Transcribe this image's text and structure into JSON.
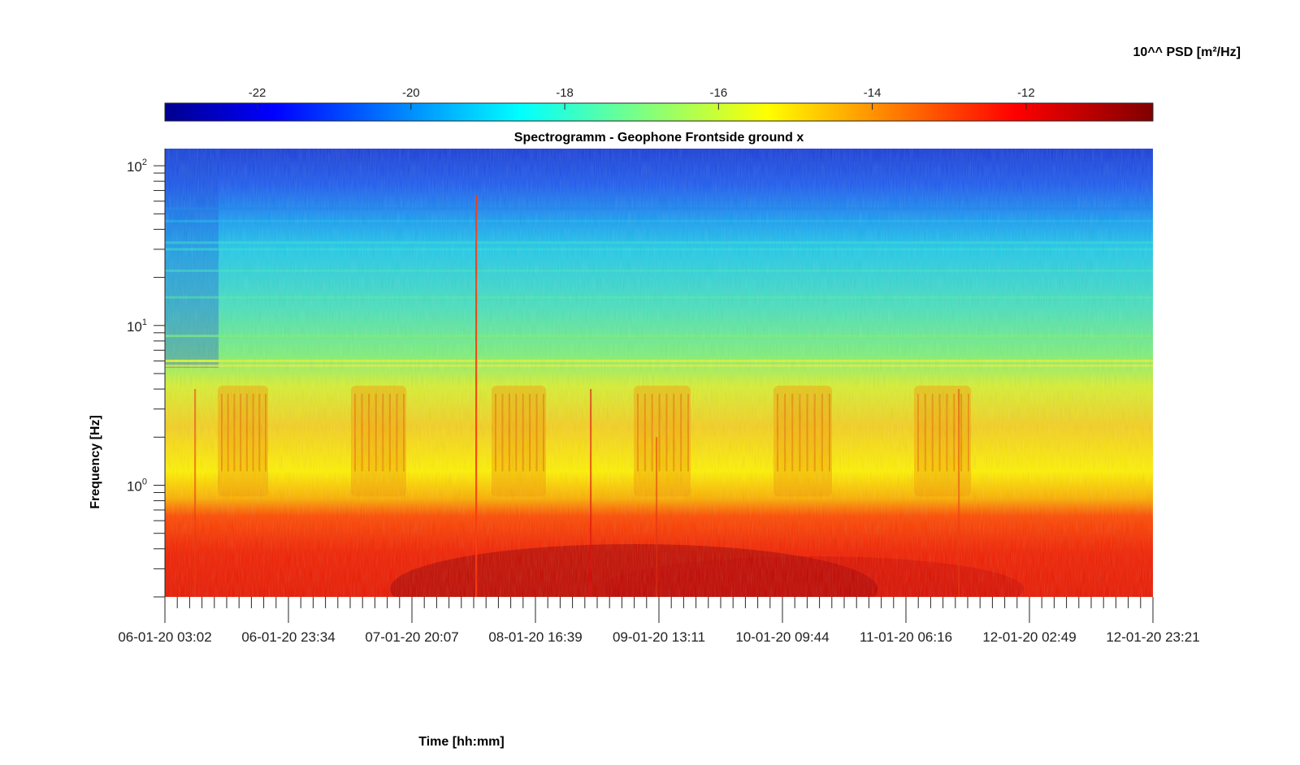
{
  "colorbar": {
    "label": "10^^ PSD [m²/Hz]",
    "ticks": [
      -22,
      -20,
      -18,
      -16,
      -14,
      -12
    ],
    "range": [
      -23.2,
      -10.35
    ]
  },
  "chart_data": {
    "type": "heatmap",
    "title": "Spectrogramm - Geophone Frontside ground x",
    "xlabel": "Time [hh:mm]",
    "ylabel": "Frequency [Hz]",
    "y_scale": "log",
    "y_tick_labels": [
      "10",
      "10",
      "10"
    ],
    "y_tick_exponents": [
      "2",
      "1",
      "0"
    ],
    "y_tick_values": [
      100,
      10,
      1
    ],
    "ylim": [
      0.2,
      128
    ],
    "x_tick_labels": [
      "06-01-20 03:02",
      "06-01-20 23:34",
      "07-01-20 20:07",
      "08-01-20 16:39",
      "09-01-20 13:11",
      "10-01-20 09:44",
      "11-01-20 06:16",
      "12-01-20 02:49",
      "12-01-20 23:21"
    ],
    "xlim": [
      "06-01-20 03:02",
      "12-01-20 23:21"
    ],
    "colormap": "jet",
    "value_units": "log10 PSD [m²/Hz]",
    "bands": [
      {
        "freq_range_hz": [
          50,
          128
        ],
        "value": -21.0
      },
      {
        "freq_range_hz": [
          20,
          50
        ],
        "value": -19.3
      },
      {
        "freq_range_hz": [
          6,
          20
        ],
        "value": -17.6
      },
      {
        "freq_range_hz": [
          1.2,
          6
        ],
        "value": -15.3
      },
      {
        "freq_range_hz": [
          0.7,
          1.2
        ],
        "value": -14.0
      },
      {
        "freq_range_hz": [
          0.2,
          0.7
        ],
        "value": -12.0
      }
    ],
    "day_activity_windows": [
      "06-01-20",
      "07-01-20",
      "08-01-20",
      "09-01-20",
      "10-01-20",
      "11-01-20"
    ]
  }
}
